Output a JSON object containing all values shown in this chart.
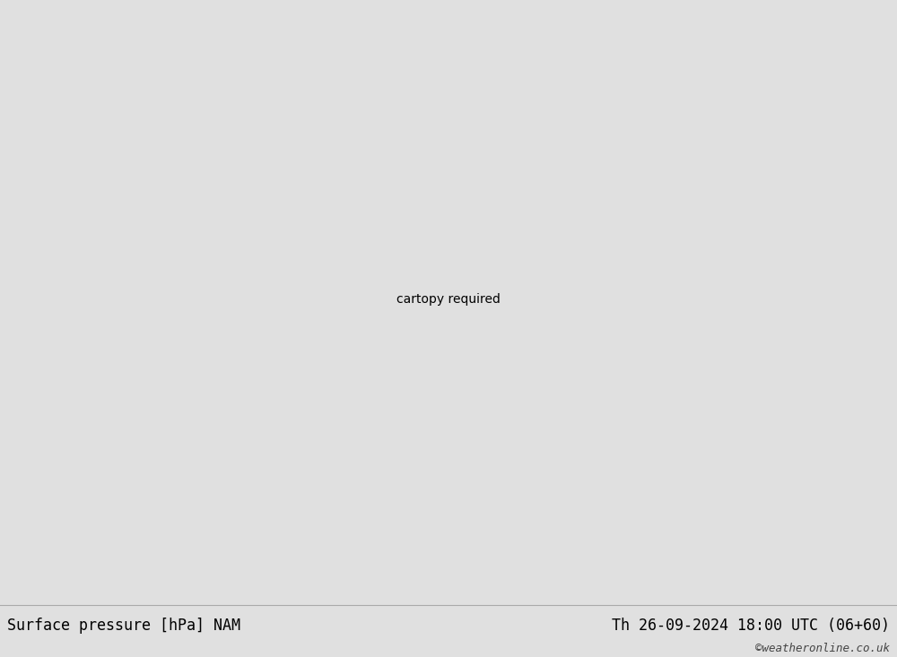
{
  "title_left": "Surface pressure [hPa] NAM",
  "title_right": "Th 26-09-2024 18:00 UTC (06+60)",
  "credit": "©weatheronline.co.uk",
  "bg_color": "#e0e0e0",
  "land_color": "#c8eaae",
  "ocean_color": "#d8d8d8",
  "coast_color": "#888888",
  "border_color": "#999999",
  "black_color": "#000000",
  "blue_color": "#0055ff",
  "red_color": "#cc0000",
  "label_fontsize": 8,
  "title_fontsize": 12,
  "credit_fontsize": 9,
  "strip_color": "#e8e8e8",
  "lon_min": -175,
  "lon_max": -10,
  "lat_min": 10,
  "lat_max": 85
}
